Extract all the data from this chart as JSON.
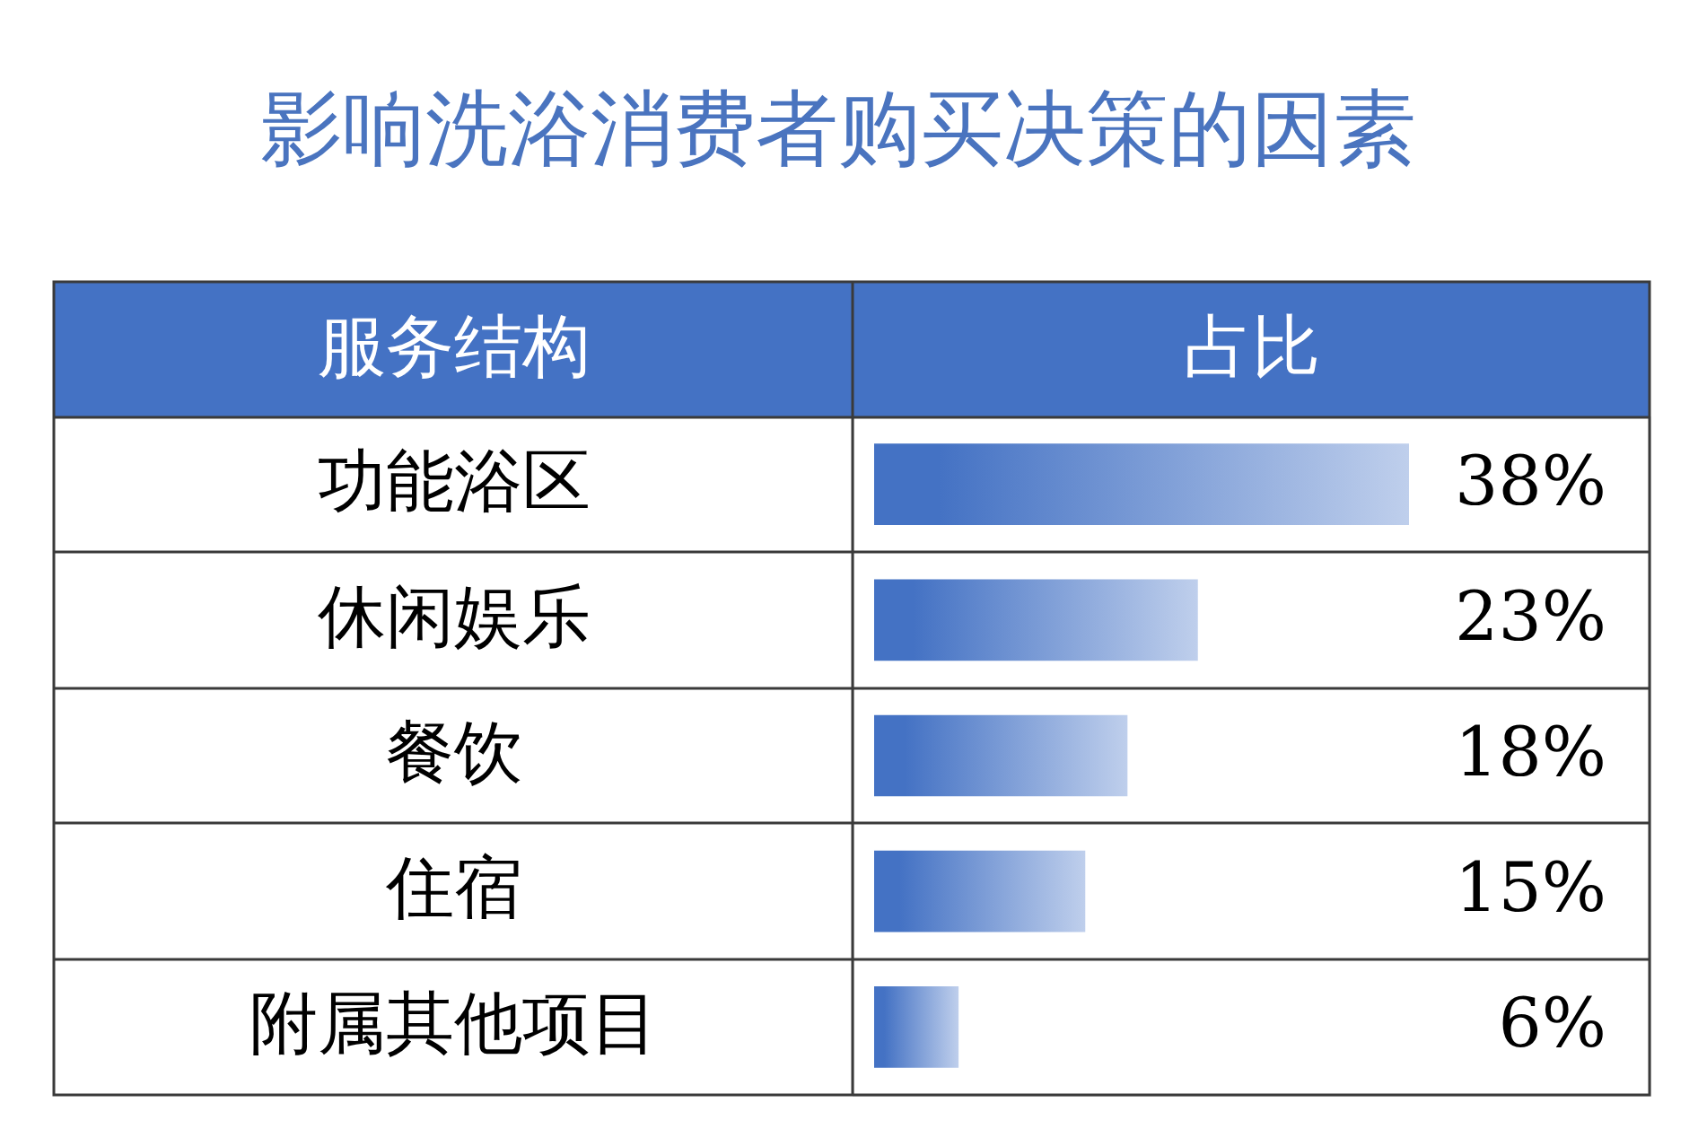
{
  "chart_data": {
    "type": "bar",
    "orientation": "horizontal",
    "title": "影响洗浴消费者购买决策的因素",
    "ylabel": "服务结构",
    "xlabel": "占比",
    "categories": [
      "功能浴区",
      "休闲娱乐",
      "餐饮",
      "住宿",
      "附属其他项目"
    ],
    "values": [
      38,
      23,
      18,
      15,
      6
    ],
    "value_labels": [
      "38%",
      "23%",
      "18%",
      "15%",
      "6%"
    ],
    "color": "#4472c4",
    "grid": "y",
    "tick_labels": "y"
  }
}
